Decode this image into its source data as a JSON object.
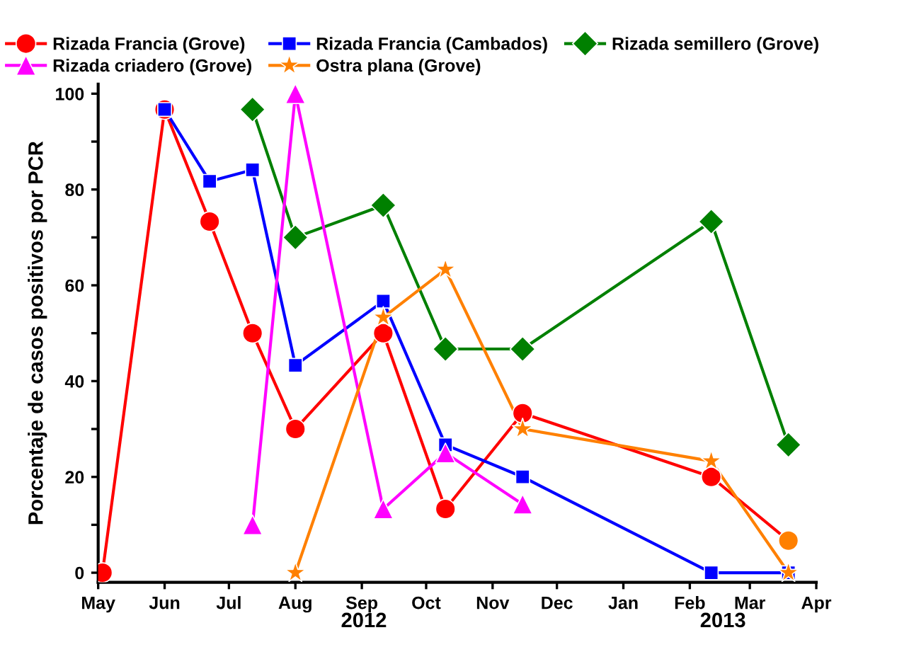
{
  "chart_data": {
    "type": "line",
    "ylabel": "Porcentaje de casos positivos por PCR",
    "xlim": [
      "2012-05-01",
      "2013-04-01"
    ],
    "xticks": [
      {
        "value": "2012-05-01",
        "label": "May"
      },
      {
        "value": "2012-06-01",
        "label": "Jun"
      },
      {
        "value": "2012-07-01",
        "label": "Jul"
      },
      {
        "value": "2012-08-01",
        "label": "Aug"
      },
      {
        "value": "2012-09-01",
        "label": "Sep"
      },
      {
        "value": "2012-10-01",
        "label": "Oct"
      },
      {
        "value": "2012-11-01",
        "label": "Nov"
      },
      {
        "value": "2012-12-01",
        "label": "Dec"
      },
      {
        "value": "2013-01-01",
        "label": "Jan"
      },
      {
        "value": "2013-02-01",
        "label": "Feb"
      },
      {
        "value": "2013-03-01",
        "label": "Mar"
      },
      {
        "value": "2013-04-01",
        "label": "Apr"
      }
    ],
    "ylim": [
      -2,
      102
    ],
    "yticks": [
      0,
      {
        "value": 10,
        "label": null
      },
      20,
      {
        "value": 30,
        "label": null
      },
      40,
      {
        "value": 50,
        "label": null
      },
      60,
      {
        "value": 70,
        "label": null
      },
      80,
      {
        "value": 90,
        "label": null
      },
      100
    ],
    "annotations": [
      "2012",
      "2013"
    ],
    "grid": false,
    "legend": "top",
    "line_style": "solid",
    "series": [
      {
        "name": "Rizada Francia (Grove)",
        "color": "#ff0000",
        "marker": "circle",
        "x": [
          "2012-05-03",
          "2012-06-01",
          "2012-06-22",
          "2012-07-12",
          "2012-08-01",
          "2012-09-11",
          "2012-10-10",
          "2012-11-15",
          "2013-02-11",
          "2013-03-19"
        ],
        "values": [
          0,
          96.7,
          73.3,
          50,
          30,
          50,
          13.3,
          33.3,
          20,
          6.7
        ],
        "colors": [
          "#ff0000",
          "#ff0000",
          "#ff0000",
          "#ff0000",
          "#ff0000",
          "#ff0000",
          "#ff0000",
          "#ff0000",
          "#ff0000",
          "#ff8000"
        ]
      },
      {
        "name": "Rizada Francia (Cambados)",
        "color": "#0000ff",
        "marker": "square",
        "x": [
          "2012-06-01",
          "2012-06-22",
          "2012-07-12",
          "2012-08-01",
          "2012-09-11",
          "2012-10-10",
          "2012-11-15",
          "2013-02-11",
          "2013-03-19"
        ],
        "values": [
          96.7,
          81.7,
          84.1,
          43.3,
          56.7,
          26.7,
          20,
          0,
          0
        ]
      },
      {
        "name": "Rizada semillero (Grove)",
        "color": "#008000",
        "marker": "diamond",
        "x": [
          "2012-07-12",
          "2012-08-01",
          "2012-09-11",
          "2012-10-10",
          "2012-11-15",
          "2013-02-11",
          "2013-03-19"
        ],
        "values": [
          96.7,
          70,
          76.7,
          46.7,
          46.7,
          73.3,
          26.7
        ]
      },
      {
        "name": "Rizada criadero (Grove)",
        "color": "#ff00ff",
        "marker": "triangle",
        "x": [
          "2012-07-12",
          "2012-08-01",
          "2012-09-11",
          "2012-10-10",
          "2012-11-15"
        ],
        "values": [
          10,
          100,
          13.3,
          25,
          14.3
        ]
      },
      {
        "name": "Ostra plana (Grove)",
        "color": "#ff8000",
        "marker": "star",
        "x": [
          "2012-08-01",
          "2012-09-11",
          "2012-10-10",
          "2012-11-15",
          "2013-02-11",
          "2013-03-19"
        ],
        "values": [
          0,
          53.3,
          63.3,
          30,
          23.3,
          0
        ]
      }
    ]
  }
}
